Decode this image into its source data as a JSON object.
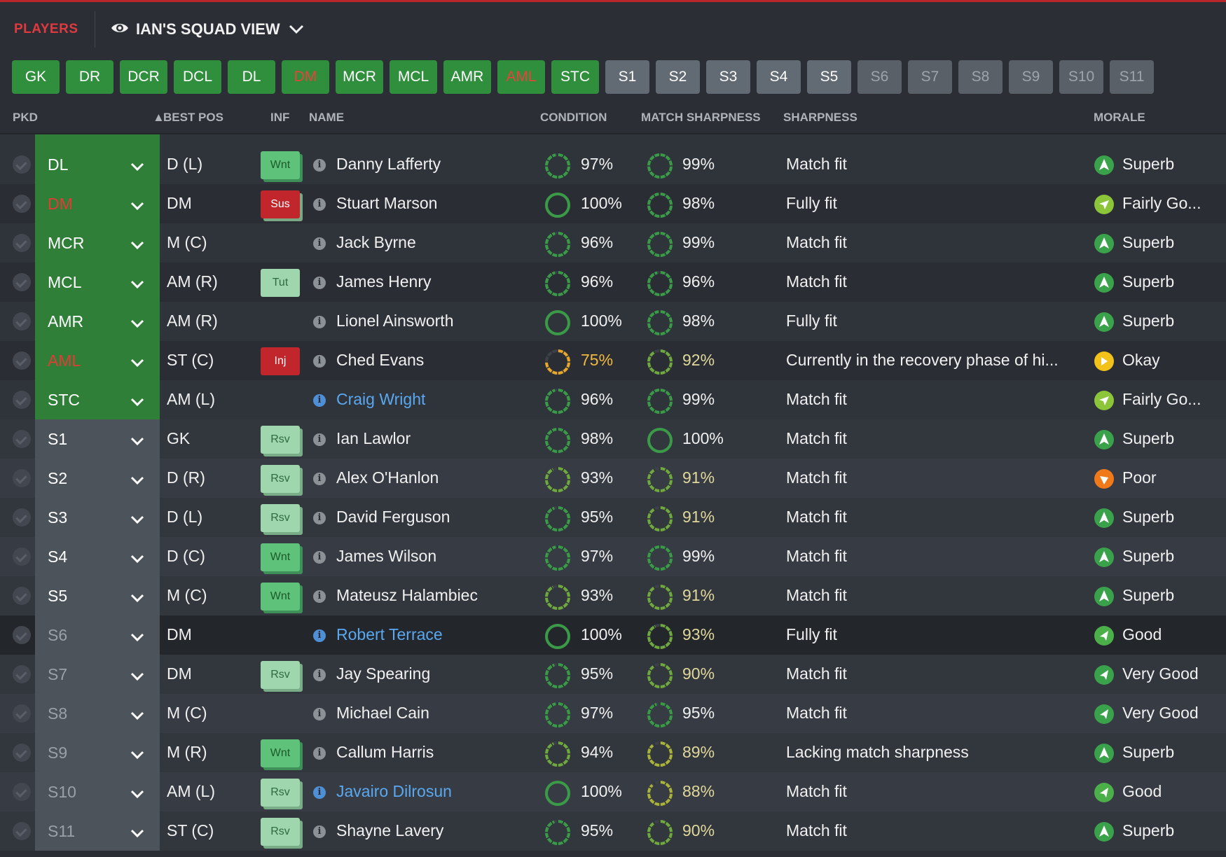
{
  "header": {
    "section": "PLAYERS",
    "view_name": "IAN'S SQUAD VIEW"
  },
  "positions": [
    {
      "label": "GK",
      "state": "green"
    },
    {
      "label": "DR",
      "state": "green"
    },
    {
      "label": "DCR",
      "state": "green"
    },
    {
      "label": "DCL",
      "state": "green"
    },
    {
      "label": "DL",
      "state": "green"
    },
    {
      "label": "DM",
      "state": "red"
    },
    {
      "label": "MCR",
      "state": "green"
    },
    {
      "label": "MCL",
      "state": "green"
    },
    {
      "label": "AMR",
      "state": "green"
    },
    {
      "label": "AML",
      "state": "red"
    },
    {
      "label": "STC",
      "state": "green"
    },
    {
      "label": "S1",
      "state": "sub"
    },
    {
      "label": "S2",
      "state": "sub"
    },
    {
      "label": "S3",
      "state": "sub"
    },
    {
      "label": "S4",
      "state": "sub"
    },
    {
      "label": "S5",
      "state": "sub"
    },
    {
      "label": "S6",
      "state": "dim"
    },
    {
      "label": "S7",
      "state": "dim"
    },
    {
      "label": "S8",
      "state": "dim"
    },
    {
      "label": "S9",
      "state": "dim"
    },
    {
      "label": "S10",
      "state": "dim"
    },
    {
      "label": "S11",
      "state": "dim"
    }
  ],
  "columns": {
    "pkd": "PKD",
    "best_pos": "BEST POS",
    "inf": "INF",
    "name": "NAME",
    "condition": "CONDITION",
    "match_sharpness": "MATCH SHARPNESS",
    "sharpness": "SHARPNESS",
    "morale": "MORALE"
  },
  "players": [
    {
      "slot": "DL",
      "slot_state": "green",
      "best_pos": "D (L)",
      "inf": "Wnt",
      "name": "Danny Lafferty",
      "link": false,
      "condition": "97%",
      "cond_pct": 97,
      "match_sharpness": "99%",
      "ms_pct": 99,
      "sharpness": "Match fit",
      "morale": "Superb",
      "morale_color": "#3aa24a"
    },
    {
      "slot": "DM",
      "slot_state": "red",
      "best_pos": "DM",
      "inf": "Sus",
      "name": "Stuart Marson",
      "link": false,
      "condition": "100%",
      "cond_pct": 100,
      "match_sharpness": "98%",
      "ms_pct": 98,
      "sharpness": "Fully fit",
      "morale": "Fairly Go...",
      "morale_color": "#8cc43a"
    },
    {
      "slot": "MCR",
      "slot_state": "green",
      "best_pos": "M (C)",
      "inf": "",
      "name": "Jack Byrne",
      "link": false,
      "condition": "96%",
      "cond_pct": 96,
      "match_sharpness": "99%",
      "ms_pct": 99,
      "sharpness": "Match fit",
      "morale": "Superb",
      "morale_color": "#3aa24a"
    },
    {
      "slot": "MCL",
      "slot_state": "green",
      "best_pos": "AM (R)",
      "inf": "Tut",
      "name": "James Henry",
      "link": false,
      "condition": "96%",
      "cond_pct": 96,
      "match_sharpness": "96%",
      "ms_pct": 96,
      "sharpness": "Match fit",
      "morale": "Superb",
      "morale_color": "#3aa24a"
    },
    {
      "slot": "AMR",
      "slot_state": "green",
      "best_pos": "AM (R)",
      "inf": "",
      "name": "Lionel Ainsworth",
      "link": false,
      "condition": "100%",
      "cond_pct": 100,
      "match_sharpness": "98%",
      "ms_pct": 98,
      "sharpness": "Fully fit",
      "morale": "Superb",
      "morale_color": "#3aa24a"
    },
    {
      "slot": "AML",
      "slot_state": "red",
      "best_pos": "ST (C)",
      "inf": "Inj",
      "name": "Ched Evans",
      "link": false,
      "condition": "75%",
      "cond_pct": 75,
      "match_sharpness": "92%",
      "ms_pct": 92,
      "sharpness": "Currently in the recovery phase of hi...",
      "morale": "Okay",
      "morale_color": "#f2c21a"
    },
    {
      "slot": "STC",
      "slot_state": "green",
      "best_pos": "AM (L)",
      "inf": "",
      "name": "Craig Wright",
      "link": true,
      "condition": "96%",
      "cond_pct": 96,
      "match_sharpness": "99%",
      "ms_pct": 99,
      "sharpness": "Match fit",
      "morale": "Fairly Go...",
      "morale_color": "#8cc43a"
    },
    {
      "slot": "S1",
      "slot_state": "sub",
      "best_pos": "GK",
      "inf": "Rsv",
      "name": "Ian Lawlor",
      "link": false,
      "condition": "98%",
      "cond_pct": 98,
      "match_sharpness": "100%",
      "ms_pct": 100,
      "sharpness": "Match fit",
      "morale": "Superb",
      "morale_color": "#3aa24a"
    },
    {
      "slot": "S2",
      "slot_state": "sub",
      "best_pos": "D (R)",
      "inf": "Rsv",
      "name": "Alex O'Hanlon",
      "link": false,
      "condition": "93%",
      "cond_pct": 93,
      "match_sharpness": "91%",
      "ms_pct": 91,
      "sharpness": "Match fit",
      "morale": "Poor",
      "morale_color": "#f07a1a"
    },
    {
      "slot": "S3",
      "slot_state": "sub",
      "best_pos": "D (L)",
      "inf": "Rsv",
      "name": "David Ferguson",
      "link": false,
      "condition": "95%",
      "cond_pct": 95,
      "match_sharpness": "91%",
      "ms_pct": 91,
      "sharpness": "Match fit",
      "morale": "Superb",
      "morale_color": "#3aa24a"
    },
    {
      "slot": "S4",
      "slot_state": "sub",
      "best_pos": "D (C)",
      "inf": "Wnt",
      "name": "James Wilson",
      "link": false,
      "condition": "97%",
      "cond_pct": 97,
      "match_sharpness": "99%",
      "ms_pct": 99,
      "sharpness": "Match fit",
      "morale": "Superb",
      "morale_color": "#3aa24a"
    },
    {
      "slot": "S5",
      "slot_state": "sub",
      "best_pos": "M (C)",
      "inf": "Wnt",
      "name": "Mateusz Halambiec",
      "link": false,
      "condition": "93%",
      "cond_pct": 93,
      "match_sharpness": "91%",
      "ms_pct": 91,
      "sharpness": "Match fit",
      "morale": "Superb",
      "morale_color": "#3aa24a"
    },
    {
      "slot": "S6",
      "slot_state": "dim",
      "best_pos": "DM",
      "inf": "",
      "name": "Robert Terrace",
      "link": true,
      "condition": "100%",
      "cond_pct": 100,
      "match_sharpness": "93%",
      "ms_pct": 93,
      "sharpness": "Fully fit",
      "morale": "Good",
      "morale_color": "#4cb04a",
      "highlight": true
    },
    {
      "slot": "S7",
      "slot_state": "dim",
      "best_pos": "DM",
      "inf": "Rsv",
      "name": "Jay Spearing",
      "link": false,
      "condition": "95%",
      "cond_pct": 95,
      "match_sharpness": "90%",
      "ms_pct": 90,
      "sharpness": "Match fit",
      "morale": "Very Good",
      "morale_color": "#3aa24a"
    },
    {
      "slot": "S8",
      "slot_state": "dim",
      "best_pos": "M (C)",
      "inf": "",
      "name": "Michael Cain",
      "link": false,
      "condition": "97%",
      "cond_pct": 97,
      "match_sharpness": "95%",
      "ms_pct": 95,
      "sharpness": "Match fit",
      "morale": "Very Good",
      "morale_color": "#3aa24a"
    },
    {
      "slot": "S9",
      "slot_state": "dim",
      "best_pos": "M (R)",
      "inf": "Wnt",
      "name": "Callum Harris",
      "link": false,
      "condition": "94%",
      "cond_pct": 94,
      "match_sharpness": "89%",
      "ms_pct": 89,
      "sharpness": "Lacking match sharpness",
      "morale": "Superb",
      "morale_color": "#3aa24a"
    },
    {
      "slot": "S10",
      "slot_state": "dim",
      "best_pos": "AM (L)",
      "inf": "Rsv",
      "name": "Javairo Dilrosun",
      "link": true,
      "condition": "100%",
      "cond_pct": 100,
      "match_sharpness": "88%",
      "ms_pct": 88,
      "sharpness": "Match fit",
      "morale": "Good",
      "morale_color": "#4cb04a"
    },
    {
      "slot": "S11",
      "slot_state": "dim",
      "best_pos": "ST (C)",
      "inf": "Rsv",
      "name": "Shayne Lavery",
      "link": false,
      "condition": "95%",
      "cond_pct": 95,
      "match_sharpness": "90%",
      "ms_pct": 90,
      "sharpness": "Match fit",
      "morale": "Superb",
      "morale_color": "#3aa24a"
    }
  ]
}
